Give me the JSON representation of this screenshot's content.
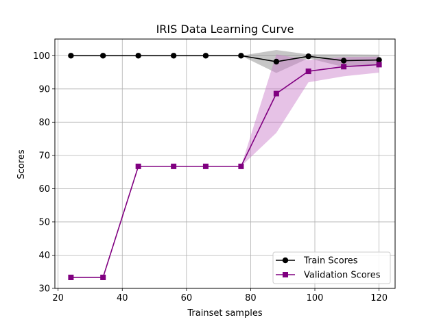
{
  "chart_data": {
    "type": "line",
    "title": "IRIS Data Learning Curve",
    "xlabel": "Trainset samples",
    "ylabel": "Scores",
    "xlim": [
      19,
      125
    ],
    "ylim": [
      30,
      105
    ],
    "xticks": [
      20,
      40,
      60,
      80,
      100,
      120
    ],
    "yticks": [
      30,
      40,
      50,
      60,
      70,
      80,
      90,
      100
    ],
    "grid": true,
    "legend_position": "bottom-right",
    "x": [
      24,
      34,
      45,
      56,
      66,
      77,
      88,
      98,
      109,
      120
    ],
    "series": [
      {
        "name": "Train Scores",
        "color": "#000000",
        "marker": "circle",
        "values": [
          100,
          100,
          100,
          100,
          100,
          100,
          98.2,
          99.8,
          98.5,
          98.7
        ],
        "band_upper": [
          100,
          100,
          100,
          100,
          100,
          100,
          101.7,
          100.4,
          100.4,
          100.3
        ],
        "band_lower": [
          100,
          100,
          100,
          100,
          100,
          100,
          94.8,
          99.2,
          96.6,
          97.1
        ],
        "band_color": "#808080"
      },
      {
        "name": "Validation Scores",
        "color": "#800080",
        "marker": "square",
        "values": [
          33.3,
          33.3,
          66.7,
          66.7,
          66.7,
          66.7,
          88.6,
          95.3,
          96.7,
          97.3
        ],
        "band_upper": [
          33.3,
          33.3,
          66.7,
          66.7,
          66.7,
          66.7,
          100.4,
          98.7,
          99.6,
          99.7
        ],
        "band_lower": [
          33.3,
          33.3,
          66.7,
          66.7,
          66.7,
          66.7,
          76.8,
          92.0,
          93.8,
          94.9
        ],
        "band_color": "#c878c8"
      }
    ]
  }
}
